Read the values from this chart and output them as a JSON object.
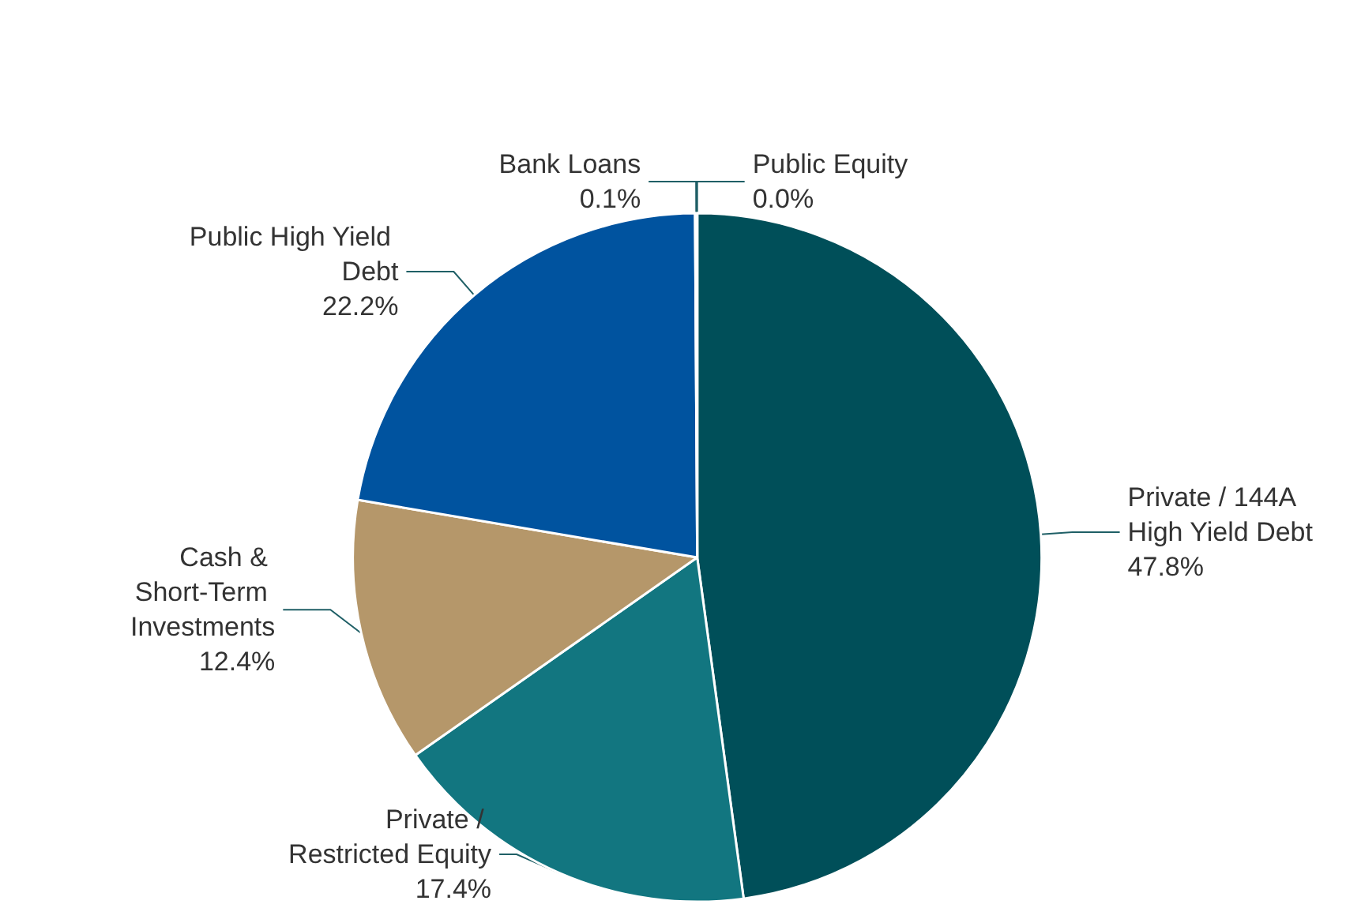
{
  "chart_data": {
    "type": "pie",
    "categories": [
      "Private / 144A High Yield Debt",
      "Private / Restricted Equity",
      "Cash & Short-Term Investments",
      "Public High Yield Debt",
      "Bank Loans",
      "Public Equity"
    ],
    "values": [
      47.8,
      17.4,
      12.4,
      22.2,
      0.1,
      0.0
    ],
    "value_labels": [
      "47.8%",
      "17.4%",
      "12.4%",
      "22.2%",
      "0.1%",
      "0.0%"
    ],
    "colors": [
      "#004f59",
      "#127680",
      "#b5976a",
      "#00539f",
      "#9aa3a6",
      "#c8c8c8"
    ],
    "legend": false
  }
}
